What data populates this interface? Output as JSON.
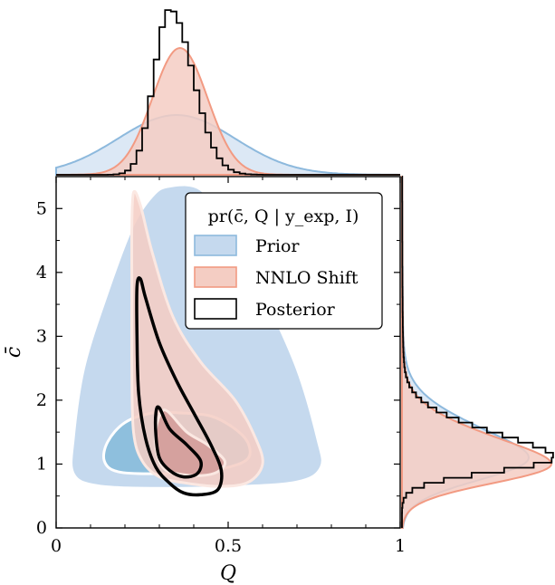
{
  "chart_data": {
    "type": "contour",
    "x_label": "Q",
    "y_label": "c̄",
    "xlim": [
      0,
      1
    ],
    "ylim": [
      0,
      5.5
    ],
    "x_ticks": [
      "0",
      "0.5",
      "1"
    ],
    "y_ticks": [
      "0",
      "1",
      "2",
      "3",
      "4",
      "5"
    ],
    "legend_title": "pr(c̄, Q | y_exp, I)",
    "legend_position": "top-right",
    "series": [
      {
        "name": "Prior",
        "color": "#8db9dd",
        "fill": "#c5d9ee",
        "fill_inner": "#8ebfdd",
        "contour_outer": [
          [
            0.33,
            5.35
          ],
          [
            0.42,
            5.3
          ],
          [
            0.5,
            4.7
          ],
          [
            0.6,
            3.7
          ],
          [
            0.7,
            2.5
          ],
          [
            0.76,
            1.4
          ],
          [
            0.77,
            0.95
          ],
          [
            0.7,
            0.72
          ],
          [
            0.5,
            0.64
          ],
          [
            0.3,
            0.62
          ],
          [
            0.12,
            0.66
          ],
          [
            0.05,
            0.85
          ],
          [
            0.05,
            1.4
          ],
          [
            0.08,
            2.5
          ],
          [
            0.15,
            3.7
          ],
          [
            0.22,
            4.7
          ],
          [
            0.28,
            5.2
          ]
        ],
        "contour_inner": [
          [
            0.28,
            1.8
          ],
          [
            0.36,
            1.8
          ],
          [
            0.45,
            1.75
          ],
          [
            0.52,
            1.55
          ],
          [
            0.56,
            1.3
          ],
          [
            0.55,
            1.05
          ],
          [
            0.45,
            0.9
          ],
          [
            0.3,
            0.85
          ],
          [
            0.18,
            0.88
          ],
          [
            0.14,
            1.05
          ],
          [
            0.15,
            1.35
          ],
          [
            0.2,
            1.65
          ]
        ],
        "marginal_x": {
          "mean": 0.35,
          "sd": 0.17
        },
        "marginal_y": {
          "mode": 1.1
        }
      },
      {
        "name": "NNLO Shift",
        "color": "#f29a82",
        "fill": "#f4cdc3",
        "fill_inner": "#d5a19e",
        "contour_outer": [
          [
            0.225,
            5.25
          ],
          [
            0.245,
            5.05
          ],
          [
            0.28,
            4.3
          ],
          [
            0.34,
            3.3
          ],
          [
            0.42,
            2.6
          ],
          [
            0.52,
            2.0
          ],
          [
            0.58,
            1.4
          ],
          [
            0.6,
            1.0
          ],
          [
            0.56,
            0.72
          ],
          [
            0.48,
            0.65
          ],
          [
            0.38,
            0.7
          ],
          [
            0.3,
            0.8
          ],
          [
            0.25,
            1.05
          ],
          [
            0.225,
            1.5
          ],
          [
            0.22,
            2.5
          ],
          [
            0.22,
            3.7
          ],
          [
            0.22,
            4.7
          ]
        ],
        "contour_inner": [
          [
            0.305,
            1.8
          ],
          [
            0.325,
            1.82
          ],
          [
            0.38,
            1.5
          ],
          [
            0.44,
            1.3
          ],
          [
            0.49,
            1.05
          ],
          [
            0.47,
            0.88
          ],
          [
            0.42,
            0.82
          ],
          [
            0.35,
            0.85
          ],
          [
            0.31,
            0.95
          ],
          [
            0.29,
            1.25
          ],
          [
            0.29,
            1.55
          ]
        ],
        "marginal_x": {
          "mean": 0.36,
          "sd": 0.08
        },
        "marginal_y": {
          "mode": 1.0
        }
      },
      {
        "name": "Posterior",
        "color": "#000000",
        "contour_outer": [
          [
            0.235,
            3.78
          ],
          [
            0.245,
            3.9
          ],
          [
            0.26,
            3.6
          ],
          [
            0.3,
            2.9
          ],
          [
            0.35,
            2.3
          ],
          [
            0.4,
            1.8
          ],
          [
            0.45,
            1.3
          ],
          [
            0.48,
            0.9
          ],
          [
            0.47,
            0.6
          ],
          [
            0.42,
            0.52
          ],
          [
            0.37,
            0.55
          ],
          [
            0.33,
            0.7
          ],
          [
            0.29,
            0.95
          ],
          [
            0.26,
            1.4
          ],
          [
            0.24,
            2.1
          ],
          [
            0.235,
            3.0
          ]
        ],
        "contour_inner": [
          [
            0.29,
            1.8
          ],
          [
            0.3,
            1.88
          ],
          [
            0.33,
            1.55
          ],
          [
            0.38,
            1.3
          ],
          [
            0.42,
            1.05
          ],
          [
            0.41,
            0.85
          ],
          [
            0.37,
            0.8
          ],
          [
            0.33,
            0.9
          ],
          [
            0.3,
            1.1
          ],
          [
            0.29,
            1.45
          ]
        ],
        "marginal_x": {
          "mean": 0.33,
          "sd": 0.05
        },
        "marginal_y": {
          "mode": 1.1
        }
      }
    ]
  }
}
